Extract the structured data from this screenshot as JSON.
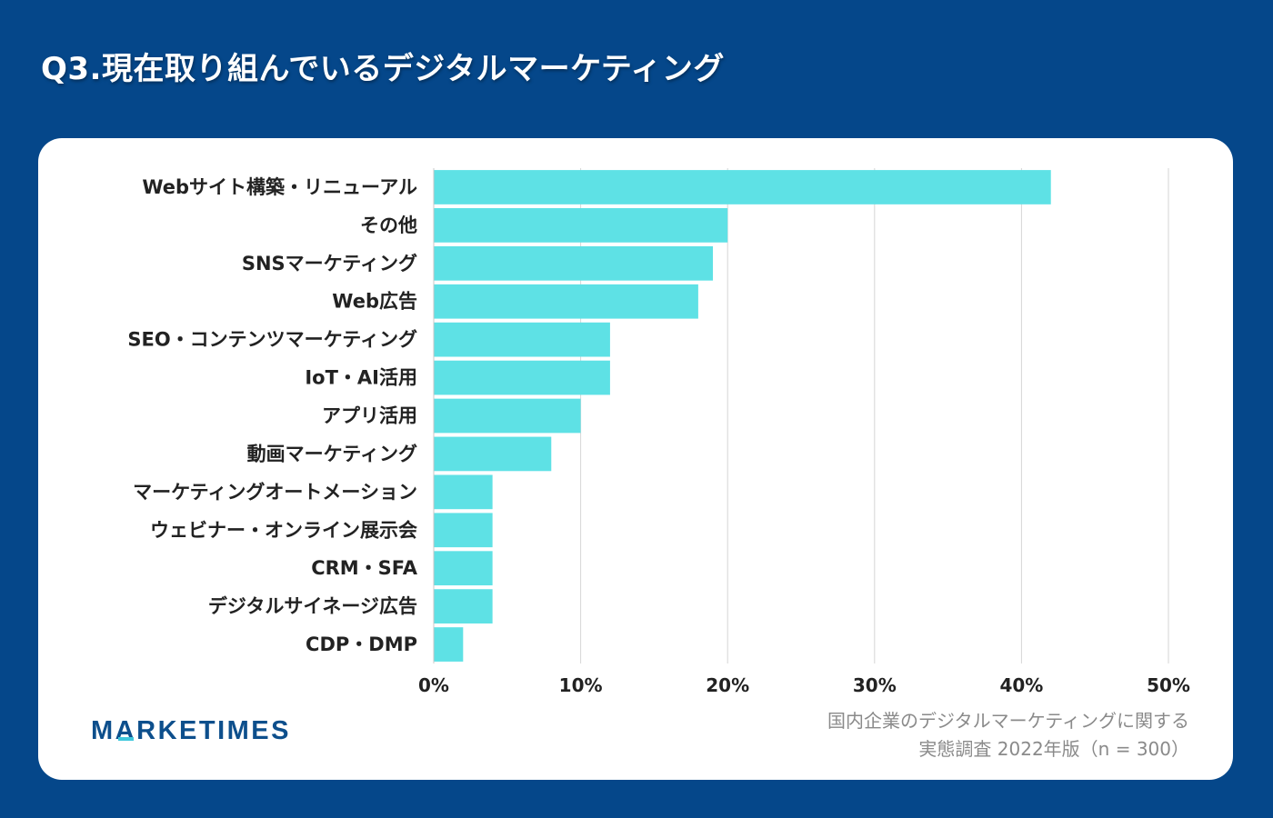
{
  "page": {
    "title": "Q3.現在取り組んでいるデジタルマーケティング",
    "logo": {
      "part1": "M",
      "part2": "A",
      "part3": "RKETIMES"
    },
    "source_line1": "国内企業のデジタルマーケティングに関する",
    "source_line2": "実態調査 2022年版（n = 300）"
  },
  "colors": {
    "background": "#05478a",
    "card": "#ffffff",
    "bar": "#5ee1e5",
    "grid": "#d6d6d6",
    "label": "#222222"
  },
  "chart_data": {
    "type": "bar",
    "orientation": "horizontal",
    "categories": [
      "Webサイト構築・リニューアル",
      "その他",
      "SNSマーケティング",
      "Web広告",
      "SEO・コンテンツマーケティング",
      "IoT・AI活用",
      "アプリ活用",
      "動画マーケティング",
      "マーケティングオートメーション",
      "ウェビナー・オンライン展示会",
      "CRM・SFA",
      "デジタルサイネージ広告",
      "CDP・DMP"
    ],
    "values": [
      42,
      20,
      19,
      18,
      12,
      12,
      10,
      8,
      4,
      4,
      4,
      4,
      2
    ],
    "unit": "%",
    "xlim": [
      0,
      50
    ],
    "xticks": [
      0,
      10,
      20,
      30,
      40,
      50
    ],
    "xtick_labels": [
      "0%",
      "10%",
      "20%",
      "30%",
      "40%",
      "50%"
    ],
    "grid": true,
    "legend": "none"
  }
}
